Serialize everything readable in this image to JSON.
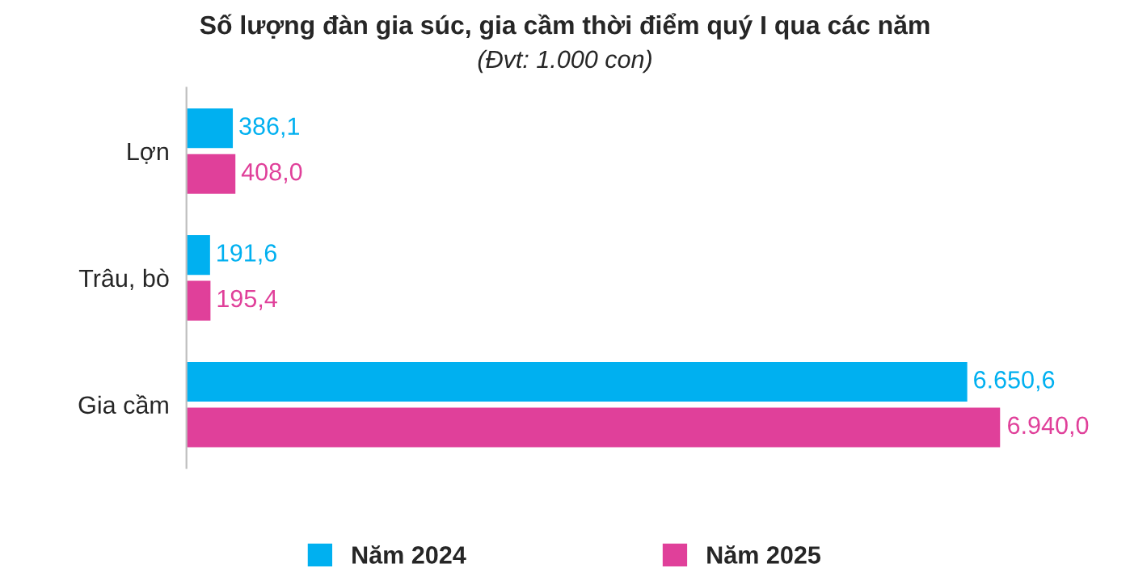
{
  "chart_data": {
    "type": "bar",
    "orientation": "horizontal",
    "title": "Số lượng đàn gia súc, gia cầm thời điểm quý I qua các năm",
    "subtitle": "(Đvt: 1.000 con)",
    "categories": [
      "Lợn",
      "Trâu, bò",
      "Gia cầm"
    ],
    "series": [
      {
        "name": "Năm 2024",
        "color": "#00b0f0",
        "values": [
          386.1,
          191.6,
          6650.6
        ],
        "value_labels": [
          "386,1",
          "191,6",
          "6.650,6"
        ]
      },
      {
        "name": "Năm 2025",
        "color": "#e0409a",
        "values": [
          408.0,
          195.4,
          6940.0
        ],
        "value_labels": [
          "408,0",
          "195,4",
          "6.940,0"
        ]
      }
    ],
    "legend": "bottom",
    "grid": false
  }
}
